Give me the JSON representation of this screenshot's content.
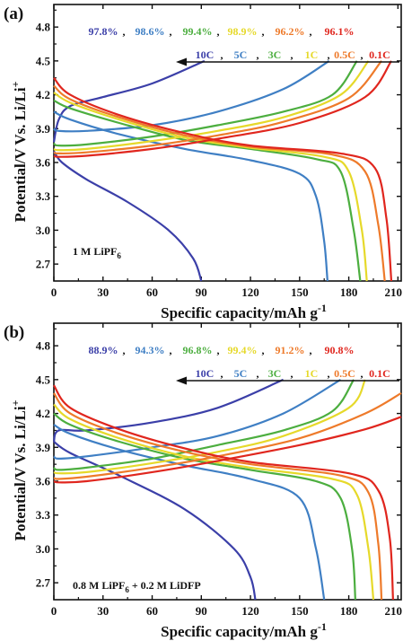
{
  "colors": {
    "10C": "#3b3fa8",
    "5C": "#3f7fc4",
    "3C": "#4cae3f",
    "1C": "#e6d92a",
    "0.5C": "#ee7a2a",
    "0.1C": "#e0261e"
  },
  "chart_data": [
    {
      "type": "line",
      "panel_label": "(a)",
      "annotation": "1 M LiPF6",
      "annotation_main": "1 M LiPF",
      "annotation_sub": "6",
      "xlabel": "Specific capacity/mAh g",
      "xlabel_sup": "-1",
      "ylabel": "Potential/V Vs. Li/Li",
      "ylabel_sup": "+",
      "xlim": [
        0,
        212
      ],
      "ylim": [
        2.55,
        5.0
      ],
      "xticks": [
        "0",
        "30",
        "60",
        "90",
        "120",
        "150",
        "180",
        "210"
      ],
      "yticks": [
        "2.7",
        "3.0",
        "3.3",
        "3.6",
        "3.9",
        "4.2",
        "4.5",
        "4.8"
      ],
      "efficiencies": [
        "97.8%",
        "98.6%",
        "99.4%",
        "98.9%",
        "96.2%",
        "96.1%"
      ],
      "rate_labels": [
        "10C",
        "5C",
        "3C",
        "1C",
        "0.5C",
        "0.1C"
      ],
      "separator": ",",
      "series": [
        {
          "name": "10C",
          "charge_x": [
            0,
            3,
            10,
            30,
            60,
            92
          ],
          "charge_y": [
            3.78,
            3.98,
            4.1,
            4.18,
            4.3,
            4.5
          ],
          "discharge_x": [
            0,
            5,
            20,
            45,
            70,
            85,
            90
          ],
          "discharge_y": [
            3.7,
            3.6,
            3.45,
            3.25,
            3.0,
            2.75,
            2.55
          ]
        },
        {
          "name": "5C",
          "charge_x": [
            0,
            3,
            20,
            60,
            100,
            140,
            168
          ],
          "charge_y": [
            3.9,
            3.88,
            3.88,
            3.93,
            4.05,
            4.25,
            4.5
          ],
          "discharge_x": [
            0,
            10,
            40,
            80,
            120,
            150,
            160,
            165,
            167
          ],
          "discharge_y": [
            4.05,
            3.98,
            3.85,
            3.72,
            3.62,
            3.5,
            3.3,
            2.9,
            2.55
          ]
        },
        {
          "name": "3C",
          "charge_x": [
            0,
            3,
            20,
            60,
            100,
            140,
            170,
            185
          ],
          "charge_y": [
            3.77,
            3.75,
            3.76,
            3.83,
            3.93,
            4.05,
            4.2,
            4.5
          ],
          "discharge_x": [
            0,
            10,
            40,
            80,
            120,
            160,
            175,
            183,
            187
          ],
          "discharge_y": [
            4.15,
            4.08,
            3.95,
            3.8,
            3.72,
            3.63,
            3.52,
            3.0,
            2.55
          ]
        },
        {
          "name": "1C",
          "charge_x": [
            0,
            3,
            20,
            60,
            100,
            140,
            175,
            192
          ],
          "charge_y": [
            3.72,
            3.71,
            3.72,
            3.79,
            3.88,
            4.0,
            4.2,
            4.5
          ],
          "discharge_x": [
            0,
            10,
            40,
            80,
            120,
            165,
            180,
            188,
            191
          ],
          "discharge_y": [
            4.22,
            4.13,
            3.98,
            3.82,
            3.73,
            3.65,
            3.52,
            3.0,
            2.55
          ]
        },
        {
          "name": "0.5C",
          "charge_x": [
            0,
            3,
            20,
            60,
            100,
            140,
            180,
            200
          ],
          "charge_y": [
            3.69,
            3.68,
            3.69,
            3.75,
            3.84,
            3.96,
            4.17,
            4.5
          ],
          "discharge_x": [
            0,
            10,
            40,
            80,
            120,
            170,
            190,
            198,
            202
          ],
          "discharge_y": [
            4.28,
            4.16,
            4.0,
            3.84,
            3.74,
            3.67,
            3.52,
            3.05,
            2.55
          ]
        },
        {
          "name": "0.1C",
          "charge_x": [
            0,
            3,
            20,
            60,
            100,
            150,
            190,
            206
          ],
          "charge_y": [
            3.66,
            3.65,
            3.66,
            3.72,
            3.81,
            3.95,
            4.18,
            4.5
          ],
          "discharge_x": [
            0,
            10,
            40,
            80,
            120,
            175,
            196,
            203,
            206
          ],
          "discharge_y": [
            4.35,
            4.2,
            4.02,
            3.86,
            3.75,
            3.68,
            3.55,
            3.1,
            2.55
          ]
        }
      ]
    },
    {
      "type": "line",
      "panel_label": "(b)",
      "annotation": "0.8 M LiPF6 + 0.2 M LiDFP",
      "annotation_main": "0.8 M LiPF",
      "annotation_sub": "6",
      "annotation_tail": " + 0.2 M LiDFP",
      "xlabel": "Specific capacity/mAh g",
      "xlabel_sup": "-1",
      "ylabel": "Potential/V Vs. Li/Li",
      "ylabel_sup": "+",
      "xlim": [
        0,
        212
      ],
      "ylim": [
        2.55,
        5.0
      ],
      "xticks": [
        "0",
        "30",
        "60",
        "90",
        "120",
        "150",
        "180",
        "210"
      ],
      "yticks": [
        "2.7",
        "3.0",
        "3.3",
        "3.6",
        "3.9",
        "4.2",
        "4.5",
        "4.8"
      ],
      "efficiencies": [
        "88.9%",
        "94.3%",
        "96.8%",
        "99.4%",
        "91.2%",
        "90.8%"
      ],
      "rate_labels": [
        "10C",
        "5C",
        "3C",
        "1C",
        "0.5C",
        "0.1C"
      ],
      "separator": ",",
      "series": [
        {
          "name": "10C",
          "charge_x": [
            0,
            3,
            20,
            60,
            100,
            140
          ],
          "charge_y": [
            3.95,
            4.05,
            4.05,
            4.12,
            4.25,
            4.5
          ],
          "discharge_x": [
            0,
            10,
            40,
            80,
            110,
            120,
            123
          ],
          "discharge_y": [
            3.95,
            3.85,
            3.65,
            3.35,
            3.0,
            2.75,
            2.55
          ]
        },
        {
          "name": "5C",
          "charge_x": [
            0,
            3,
            20,
            60,
            100,
            140,
            175
          ],
          "charge_y": [
            3.82,
            3.8,
            3.82,
            3.9,
            4.0,
            4.2,
            4.5
          ],
          "discharge_x": [
            0,
            10,
            40,
            80,
            120,
            150,
            160,
            165
          ],
          "discharge_y": [
            4.1,
            4.02,
            3.88,
            3.74,
            3.62,
            3.45,
            3.0,
            2.55
          ]
        },
        {
          "name": "3C",
          "charge_x": [
            0,
            3,
            20,
            60,
            100,
            140,
            170,
            183
          ],
          "charge_y": [
            3.72,
            3.7,
            3.72,
            3.8,
            3.92,
            4.05,
            4.22,
            4.5
          ],
          "discharge_x": [
            0,
            10,
            40,
            80,
            120,
            160,
            175,
            182,
            184
          ],
          "discharge_y": [
            4.2,
            4.1,
            3.95,
            3.8,
            3.7,
            3.6,
            3.45,
            3.0,
            2.55
          ]
        },
        {
          "name": "1C",
          "charge_x": [
            0,
            3,
            20,
            60,
            100,
            140,
            180,
            190
          ],
          "charge_y": [
            3.68,
            3.67,
            3.68,
            3.76,
            3.86,
            4.0,
            4.25,
            4.5
          ],
          "discharge_x": [
            0,
            10,
            40,
            80,
            120,
            170,
            185,
            192,
            195
          ],
          "discharge_y": [
            4.28,
            4.15,
            3.98,
            3.82,
            3.72,
            3.62,
            3.48,
            3.0,
            2.55
          ]
        },
        {
          "name": "0.5C",
          "charge_x": [
            0,
            3,
            20,
            60,
            100,
            150,
            190,
            212
          ],
          "charge_y": [
            3.63,
            3.62,
            3.64,
            3.72,
            3.82,
            3.98,
            4.2,
            4.38
          ],
          "discharge_x": [
            0,
            10,
            40,
            80,
            120,
            175,
            192,
            198,
            200
          ],
          "discharge_y": [
            4.38,
            4.2,
            4.02,
            3.86,
            3.75,
            3.65,
            3.5,
            3.05,
            2.55
          ]
        },
        {
          "name": "0.1C",
          "charge_x": [
            0,
            3,
            20,
            60,
            100,
            150,
            190,
            212
          ],
          "charge_y": [
            3.6,
            3.59,
            3.6,
            3.68,
            3.78,
            3.92,
            4.06,
            4.17
          ],
          "discharge_x": [
            0,
            10,
            40,
            80,
            120,
            180,
            198,
            205,
            207
          ],
          "discharge_y": [
            4.45,
            4.25,
            4.06,
            3.89,
            3.77,
            3.67,
            3.52,
            3.1,
            2.55
          ]
        }
      ]
    }
  ]
}
